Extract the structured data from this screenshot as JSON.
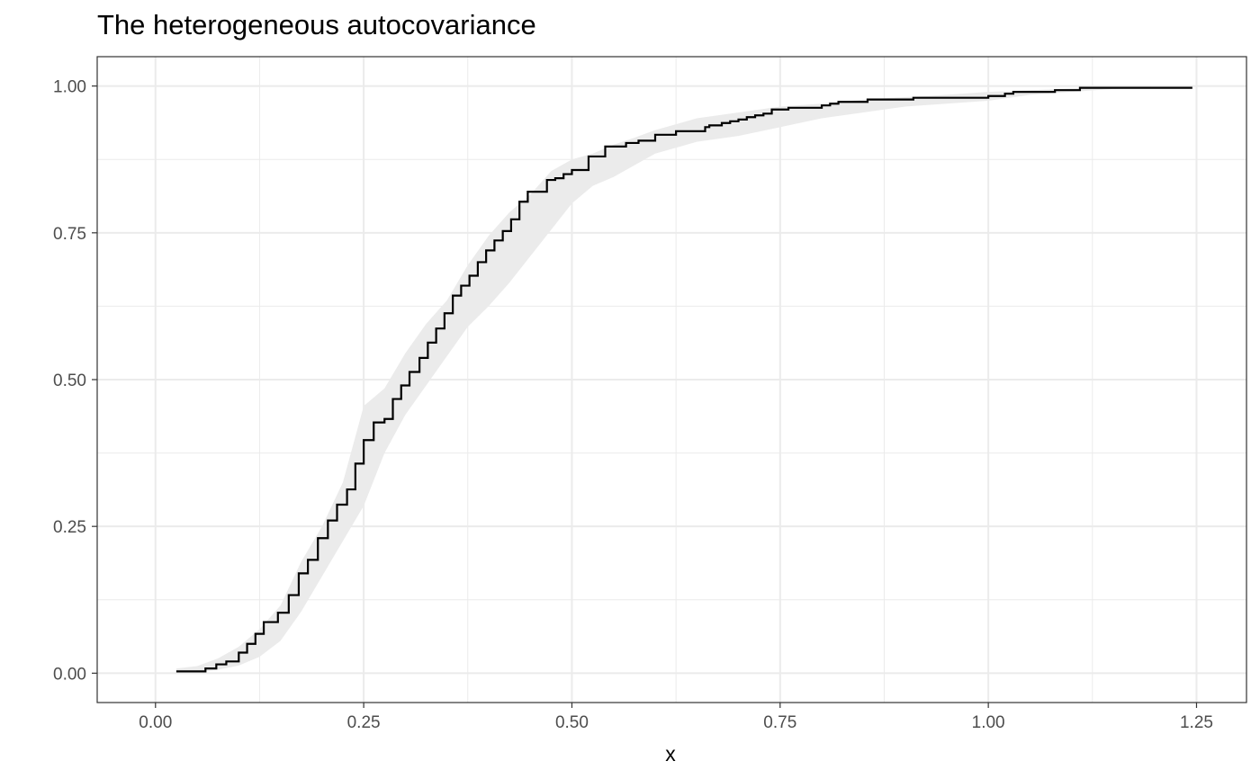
{
  "chart_data": {
    "type": "line",
    "title": "The heterogeneous autocovariance",
    "xlabel": "x",
    "ylabel": "",
    "xlim": [
      -0.07,
      1.31
    ],
    "ylim": [
      -0.05,
      1.05
    ],
    "x_ticks": [
      0.0,
      0.25,
      0.5,
      0.75,
      1.0,
      1.25
    ],
    "x_tick_labels": [
      "0.00",
      "0.25",
      "0.50",
      "0.75",
      "1.00",
      "1.25"
    ],
    "y_ticks": [
      0.0,
      0.25,
      0.5,
      0.75,
      1.0
    ],
    "y_tick_labels": [
      "0.00",
      "0.25",
      "0.50",
      "0.75",
      "1.00"
    ],
    "grid": true,
    "legend": "none",
    "series": [
      {
        "style": "step",
        "color": "#000000",
        "x": [
          0.025,
          0.06,
          0.073,
          0.085,
          0.1,
          0.11,
          0.12,
          0.13,
          0.14,
          0.147,
          0.16,
          0.172,
          0.183,
          0.195,
          0.207,
          0.218,
          0.23,
          0.24,
          0.25,
          0.262,
          0.275,
          0.285,
          0.295,
          0.305,
          0.317,
          0.327,
          0.337,
          0.347,
          0.357,
          0.367,
          0.377,
          0.387,
          0.397,
          0.407,
          0.417,
          0.427,
          0.437,
          0.447,
          0.457,
          0.47,
          0.48,
          0.49,
          0.5,
          0.51,
          0.52,
          0.53,
          0.54,
          0.565,
          0.58,
          0.59,
          0.6,
          0.625,
          0.635,
          0.66,
          0.665,
          0.68,
          0.69,
          0.7,
          0.71,
          0.72,
          0.73,
          0.74,
          0.75,
          0.76,
          0.8,
          0.81,
          0.82,
          0.83,
          0.855,
          0.91,
          0.92,
          1.0,
          1.02,
          1.03,
          1.05,
          1.08,
          1.11,
          1.245
        ],
        "y": [
          0.003,
          0.008,
          0.015,
          0.02,
          0.035,
          0.05,
          0.067,
          0.087,
          0.087,
          0.103,
          0.133,
          0.17,
          0.193,
          0.23,
          0.26,
          0.287,
          0.313,
          0.357,
          0.397,
          0.427,
          0.433,
          0.467,
          0.49,
          0.513,
          0.537,
          0.563,
          0.587,
          0.613,
          0.643,
          0.66,
          0.677,
          0.7,
          0.72,
          0.737,
          0.753,
          0.773,
          0.803,
          0.82,
          0.82,
          0.84,
          0.843,
          0.85,
          0.857,
          0.857,
          0.88,
          0.88,
          0.897,
          0.903,
          0.907,
          0.907,
          0.917,
          0.923,
          0.923,
          0.93,
          0.933,
          0.937,
          0.94,
          0.943,
          0.947,
          0.95,
          0.953,
          0.96,
          0.96,
          0.963,
          0.967,
          0.97,
          0.973,
          0.973,
          0.977,
          0.98,
          0.98,
          0.983,
          0.987,
          0.99,
          0.99,
          0.993,
          0.997,
          0.997
        ]
      }
    ],
    "confidence_band": {
      "color": "#ebebeb",
      "x": [
        0.025,
        0.05,
        0.075,
        0.1,
        0.125,
        0.15,
        0.175,
        0.2,
        0.225,
        0.25,
        0.275,
        0.3,
        0.325,
        0.35,
        0.375,
        0.4,
        0.425,
        0.45,
        0.475,
        0.5,
        0.525,
        0.55,
        0.575,
        0.6,
        0.65,
        0.7,
        0.75,
        0.8,
        0.85,
        0.9,
        0.95,
        1.0,
        1.05,
        1.1,
        1.15,
        1.2,
        1.245
      ],
      "lower": [
        0.0,
        0.002,
        0.006,
        0.013,
        0.028,
        0.055,
        0.105,
        0.165,
        0.225,
        0.285,
        0.375,
        0.44,
        0.49,
        0.54,
        0.59,
        0.625,
        0.665,
        0.71,
        0.755,
        0.8,
        0.83,
        0.845,
        0.865,
        0.885,
        0.905,
        0.915,
        0.93,
        0.945,
        0.955,
        0.965,
        0.97,
        0.975,
        0.985,
        0.99,
        0.995,
        0.997,
        0.998
      ],
      "upper": [
        0.008,
        0.012,
        0.025,
        0.045,
        0.075,
        0.115,
        0.19,
        0.25,
        0.325,
        0.455,
        0.485,
        0.545,
        0.595,
        0.635,
        0.695,
        0.745,
        0.785,
        0.815,
        0.855,
        0.875,
        0.885,
        0.9,
        0.912,
        0.925,
        0.945,
        0.955,
        0.965,
        0.97,
        0.977,
        0.981,
        0.985,
        0.99,
        0.993,
        0.996,
        0.998,
        0.999,
        1.0
      ]
    }
  }
}
